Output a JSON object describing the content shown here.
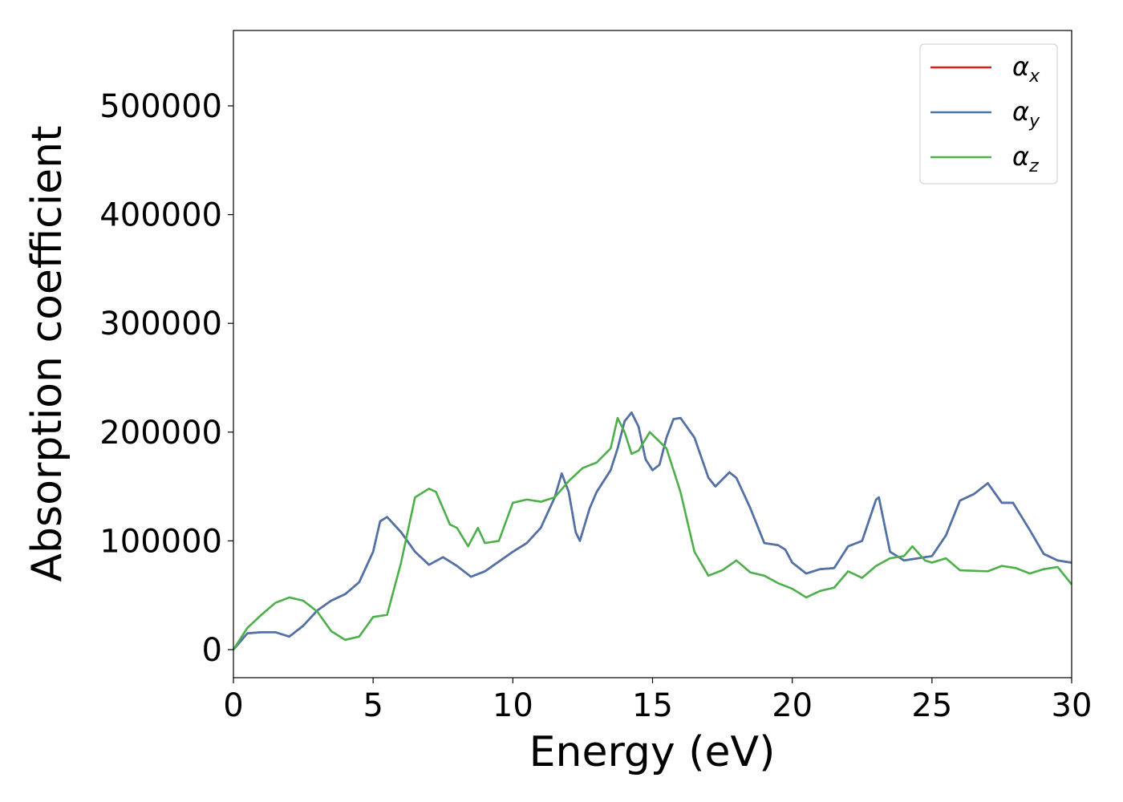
{
  "chart_data": {
    "type": "line",
    "xlabel": "Energy (eV)",
    "ylabel": "Absorption coefficient",
    "xlim": [
      0,
      30
    ],
    "xticks": [
      0,
      5,
      10,
      15,
      20,
      25,
      30
    ],
    "ylim": [
      -25800,
      569300
    ],
    "yticks": [
      0,
      100000,
      200000,
      300000,
      400000,
      500000
    ],
    "legend": "upper right",
    "series": [
      {
        "name": "αx",
        "color": "#e41a1c",
        "x": [
          0,
          0.5,
          1,
          1.5,
          2,
          2.5,
          3,
          3.5,
          4,
          4.5,
          5,
          5.25,
          5.5,
          6,
          6.5,
          7,
          7.5,
          8,
          8.5,
          9,
          9.5,
          10,
          10.5,
          11,
          11.5,
          11.75,
          12,
          12.25,
          12.4,
          12.75,
          13,
          13.5,
          13.75,
          14,
          14.25,
          14.5,
          14.75,
          15,
          15.25,
          15.5,
          15.75,
          16,
          16.5,
          17,
          17.25,
          17.75,
          18,
          18.5,
          19,
          19.5,
          19.75,
          20,
          20.5,
          21,
          21.5,
          22,
          22.5,
          23,
          23.1,
          23.5,
          24,
          24.5,
          25,
          25.5,
          26,
          26.5,
          27,
          27.5,
          27.9,
          28.5,
          29,
          29.5,
          30
        ],
        "values": [
          0,
          15000,
          16000,
          16000,
          12000,
          22000,
          36000,
          45000,
          51000,
          62000,
          90000,
          118000,
          122000,
          108000,
          90000,
          78000,
          85000,
          77000,
          67000,
          72000,
          81000,
          90000,
          98000,
          112000,
          140000,
          162000,
          145000,
          108000,
          100000,
          130000,
          145000,
          165000,
          185000,
          210000,
          218000,
          205000,
          175000,
          165000,
          170000,
          195000,
          212000,
          213000,
          195000,
          158000,
          150000,
          163000,
          158000,
          130000,
          98000,
          96000,
          92000,
          80000,
          70000,
          74000,
          75000,
          95000,
          100000,
          138000,
          140000,
          90000,
          82000,
          84000,
          86000,
          105000,
          137000,
          143000,
          153000,
          135000,
          135000,
          110000,
          88000,
          82000,
          80000
        ]
      },
      {
        "name": "αy",
        "color": "#4a74aa",
        "x": [
          0,
          0.5,
          1,
          1.5,
          2,
          2.5,
          3,
          3.5,
          4,
          4.5,
          5,
          5.25,
          5.5,
          6,
          6.5,
          7,
          7.5,
          8,
          8.5,
          9,
          9.5,
          10,
          10.5,
          11,
          11.5,
          11.75,
          12,
          12.25,
          12.4,
          12.75,
          13,
          13.5,
          13.75,
          14,
          14.25,
          14.5,
          14.75,
          15,
          15.25,
          15.5,
          15.75,
          16,
          16.5,
          17,
          17.25,
          17.75,
          18,
          18.5,
          19,
          19.5,
          19.75,
          20,
          20.5,
          21,
          21.5,
          22,
          22.5,
          23,
          23.1,
          23.5,
          24,
          24.5,
          25,
          25.5,
          26,
          26.5,
          27,
          27.5,
          27.9,
          28.5,
          29,
          29.5,
          30
        ],
        "values": [
          0,
          15000,
          16000,
          16000,
          12000,
          22000,
          36000,
          45000,
          51000,
          62000,
          90000,
          118000,
          122000,
          108000,
          90000,
          78000,
          85000,
          77000,
          67000,
          72000,
          81000,
          90000,
          98000,
          112000,
          140000,
          162000,
          145000,
          108000,
          100000,
          130000,
          145000,
          165000,
          185000,
          210000,
          218000,
          205000,
          175000,
          165000,
          170000,
          195000,
          212000,
          213000,
          195000,
          158000,
          150000,
          163000,
          158000,
          130000,
          98000,
          96000,
          92000,
          80000,
          70000,
          74000,
          75000,
          95000,
          100000,
          138000,
          140000,
          90000,
          82000,
          84000,
          86000,
          105000,
          137000,
          143000,
          153000,
          135000,
          135000,
          110000,
          88000,
          82000,
          80000
        ]
      },
      {
        "name": "αz",
        "color": "#4daf4a",
        "x": [
          0,
          0.5,
          1,
          1.5,
          2,
          2.5,
          3,
          3.5,
          4,
          4.5,
          5,
          5.5,
          6,
          6.5,
          7,
          7.25,
          7.5,
          7.75,
          8,
          8.4,
          8.75,
          9,
          9.5,
          10,
          10.5,
          11,
          11.5,
          12,
          12.5,
          13,
          13.5,
          13.75,
          14,
          14.25,
          14.5,
          14.9,
          15.5,
          16,
          16.5,
          17,
          17.5,
          18,
          18.5,
          19,
          19.5,
          20,
          20.5,
          21,
          21.5,
          22,
          22.5,
          23,
          23.5,
          24,
          24.3,
          24.75,
          25,
          25.5,
          26,
          27,
          27.5,
          28,
          28.5,
          29,
          29.5,
          30
        ],
        "values": [
          0,
          20000,
          32000,
          43000,
          48000,
          45000,
          35000,
          17000,
          9000,
          12000,
          30000,
          32000,
          80000,
          140000,
          148000,
          145000,
          130000,
          115000,
          112000,
          95000,
          112000,
          98000,
          100000,
          135000,
          138000,
          136000,
          140000,
          155000,
          167000,
          172000,
          185000,
          213000,
          200000,
          180000,
          183000,
          200000,
          185000,
          145000,
          90000,
          68000,
          73000,
          82000,
          71000,
          68000,
          61000,
          56000,
          48000,
          54000,
          57000,
          72000,
          66000,
          77000,
          84000,
          86000,
          95000,
          82000,
          80000,
          84000,
          73000,
          72000,
          77000,
          75000,
          70000,
          74000,
          76000,
          60000
        ]
      }
    ]
  }
}
